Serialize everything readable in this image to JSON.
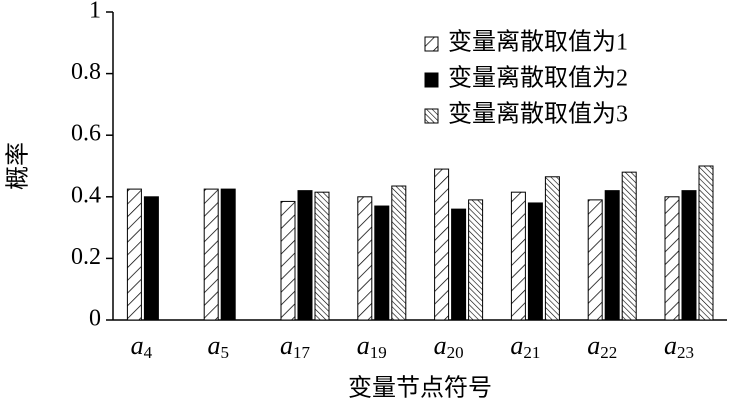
{
  "chart_data": {
    "type": "bar",
    "x_label": "变量节点符号",
    "y_label": "概率",
    "categories": [
      "a4",
      "a5",
      "a17",
      "a19",
      "a20",
      "a21",
      "a22",
      "a23"
    ],
    "series": [
      {
        "name": "变量离散取值为1",
        "color": "#ffffff",
        "hatch": "sparse-forward",
        "values": [
          0.425,
          0.425,
          0.385,
          0.4,
          0.49,
          0.415,
          0.39,
          0.4
        ]
      },
      {
        "name": "变量离散取值为2",
        "color": "#000000",
        "hatch": "none",
        "values": [
          0.4,
          0.425,
          0.42,
          0.37,
          0.36,
          0.38,
          0.42,
          0.42
        ]
      },
      {
        "name": "变量离散取值为3",
        "color": "#ffffff",
        "hatch": "dense-back",
        "values": [
          null,
          null,
          0.415,
          0.435,
          0.39,
          0.465,
          0.48,
          0.5
        ]
      }
    ],
    "ylim": [
      0,
      1
    ],
    "yticks": [
      0,
      0.2,
      0.4,
      0.6,
      0.8,
      1
    ],
    "grid": false,
    "legend": "upper right"
  }
}
